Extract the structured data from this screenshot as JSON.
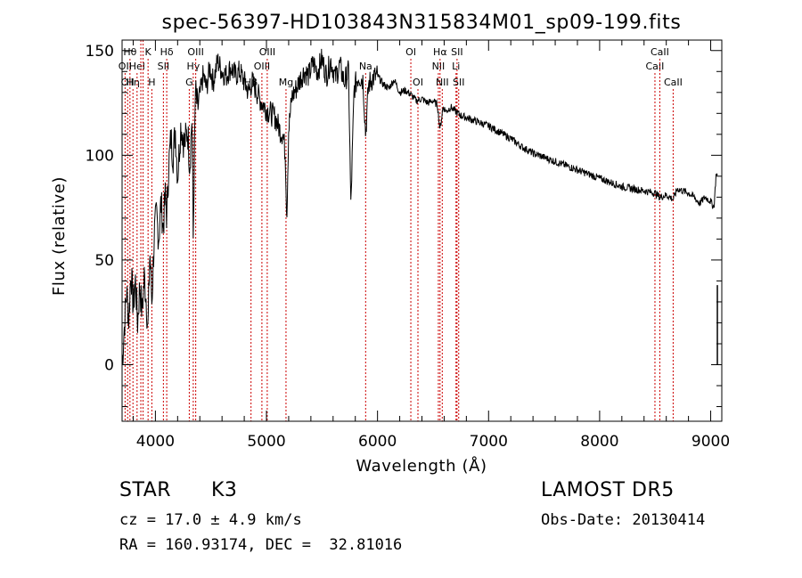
{
  "chart_data": {
    "type": "line",
    "title": "spec-56397-HD103843N315834M01_sp09-199.fits",
    "xlabel": "Wavelength (Å)",
    "ylabel": "Flux (relative)",
    "xlim": [
      3700,
      9100
    ],
    "ylim": [
      -27,
      155
    ],
    "xticks": [
      4000,
      5000,
      6000,
      7000,
      8000,
      9000
    ],
    "yticks": [
      0,
      50,
      100,
      150
    ],
    "grid": false,
    "series": [
      {
        "color": "#000000",
        "x": [
          3700,
          3720,
          3740,
          3760,
          3780,
          3800,
          3820,
          3840,
          3860,
          3880,
          3900,
          3920,
          3933,
          3950,
          3968,
          3990,
          4010,
          4030,
          4050,
          4070,
          4090,
          4102,
          4120,
          4140,
          4160,
          4180,
          4200,
          4230,
          4260,
          4290,
          4310,
          4330,
          4340,
          4360,
          4380,
          4400,
          4430,
          4460,
          4490,
          4520,
          4560,
          4600,
          4640,
          4680,
          4720,
          4760,
          4800,
          4840,
          4870,
          4900,
          4930,
          4960,
          5000,
          5040,
          5080,
          5120,
          5150,
          5170,
          5183,
          5200,
          5230,
          5270,
          5300,
          5340,
          5380,
          5420,
          5460,
          5500,
          5540,
          5580,
          5620,
          5660,
          5700,
          5740,
          5760,
          5790,
          5830,
          5870,
          5893,
          5920,
          5960,
          6000,
          6050,
          6100,
          6150,
          6200,
          6250,
          6300,
          6350,
          6400,
          6450,
          6500,
          6540,
          6563,
          6590,
          6620,
          6660,
          6700,
          6750,
          6800,
          6850,
          6900,
          7000,
          7100,
          7200,
          7300,
          7400,
          7500,
          7600,
          7700,
          7800,
          7900,
          8000,
          8100,
          8200,
          8300,
          8400,
          8498,
          8542,
          8600,
          8662,
          8700,
          8800,
          8850,
          8900,
          8950,
          9000,
          9030,
          9050,
          9060
        ],
        "y": [
          0,
          18,
          35,
          22,
          45,
          28,
          40,
          20,
          38,
          25,
          42,
          30,
          15,
          55,
          30,
          62,
          72,
          60,
          78,
          65,
          82,
          70,
          95,
          108,
          100,
          112,
          90,
          115,
          105,
          112,
          95,
          120,
          60,
          130,
          122,
          128,
          138,
          132,
          142,
          135,
          145,
          140,
          138,
          142,
          138,
          140,
          135,
          130,
          135,
          132,
          128,
          125,
          122,
          120,
          118,
          112,
          110,
          100,
          70,
          112,
          128,
          132,
          136,
          140,
          138,
          144,
          140,
          146,
          138,
          145,
          137,
          143,
          135,
          140,
          75,
          132,
          138,
          136,
          110,
          134,
          137,
          138,
          134,
          132,
          136,
          130,
          131,
          129,
          126,
          127,
          125,
          126,
          124,
          112,
          123,
          121,
          123,
          121,
          119,
          118,
          117,
          116,
          114,
          111,
          108,
          104,
          101,
          99,
          97,
          95,
          93,
          91,
          89,
          87,
          85,
          84,
          83,
          82,
          80,
          81,
          79,
          84,
          82,
          80,
          77,
          80,
          78,
          75,
          92,
          90
        ]
      }
    ],
    "lines": [
      {
        "lam": 3727,
        "label": "OII",
        "row": 2
      },
      {
        "lam": 3750,
        "label": "OII",
        "row": 3
      },
      {
        "lam": 3771,
        "label": "Hθ",
        "row": 1
      },
      {
        "lam": 3798,
        "label": "Hη",
        "row": 3
      },
      {
        "lam": 3835,
        "label": "Hel",
        "row": 2
      },
      {
        "lam": 3869,
        "label": "",
        "row": 0
      },
      {
        "lam": 3889,
        "label": "",
        "row": 0
      },
      {
        "lam": 3934,
        "label": "K",
        "row": 1
      },
      {
        "lam": 3968,
        "label": "H",
        "row": 3
      },
      {
        "lam": 4072,
        "label": "SII",
        "row": 2
      },
      {
        "lam": 4102,
        "label": "Hδ",
        "row": 1
      },
      {
        "lam": 4305,
        "label": "G",
        "row": 3
      },
      {
        "lam": 4341,
        "label": "Hγ",
        "row": 2
      },
      {
        "lam": 4363,
        "label": "OIII",
        "row": 1
      },
      {
        "lam": 4861,
        "label": "Hβ",
        "row": 3
      },
      {
        "lam": 4959,
        "label": "OIII",
        "row": 2
      },
      {
        "lam": 5007,
        "label": "OIII",
        "row": 1
      },
      {
        "lam": 5176,
        "label": "Mg",
        "row": 3
      },
      {
        "lam": 5893,
        "label": "Na",
        "row": 2
      },
      {
        "lam": 6300,
        "label": "OI",
        "row": 1
      },
      {
        "lam": 6364,
        "label": "OI",
        "row": 3
      },
      {
        "lam": 6548,
        "label": "NII",
        "row": 2
      },
      {
        "lam": 6563,
        "label": "Hα",
        "row": 1
      },
      {
        "lam": 6583,
        "label": "NII",
        "row": 3
      },
      {
        "lam": 6707,
        "label": "Li",
        "row": 2
      },
      {
        "lam": 6716,
        "label": "SII",
        "row": 1
      },
      {
        "lam": 6731,
        "label": "SII",
        "row": 3
      },
      {
        "lam": 8498,
        "label": "CaII",
        "row": 2
      },
      {
        "lam": 8542,
        "label": "CaII",
        "row": 1
      },
      {
        "lam": 8662,
        "label": "CaII",
        "row": 3
      }
    ]
  },
  "info": {
    "class_label": "STAR",
    "subclass": "K3",
    "cz": "cz = 17.0 ± 4.9 km/s",
    "radec": "RA = 160.93174, DEC =  32.81016",
    "survey": "LAMOST DR5",
    "obs_date": "Obs-Date: 20130414"
  },
  "colors": {
    "line_marker": "#cc0000",
    "spectrum": "#000000",
    "axes": "#000000"
  }
}
